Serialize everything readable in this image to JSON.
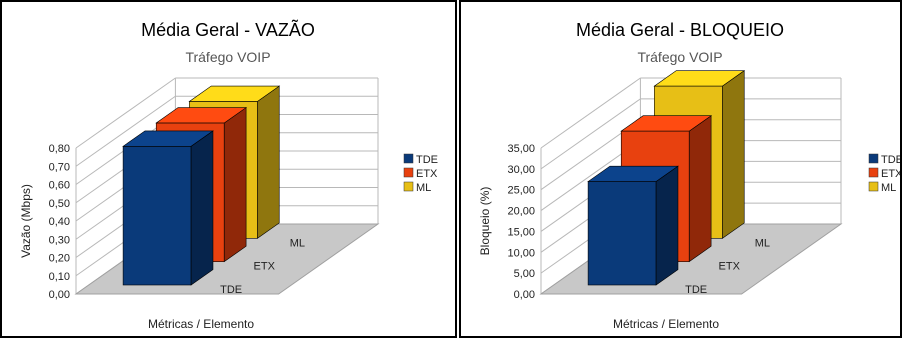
{
  "chart_data": [
    {
      "type": "bar",
      "title": "Média Geral - VAZÃO",
      "subtitle": "Tráfego VOIP",
      "xlabel": "Métricas / Elemento",
      "ylabel": "Vazão (Mbps)",
      "ylim": [
        0,
        0.8
      ],
      "yticks": [
        "0,00",
        "0,10",
        "0,20",
        "0,30",
        "0,40",
        "0,50",
        "0,60",
        "0,70",
        "0,80"
      ],
      "categories": [
        "TDE",
        "ETX",
        "ML"
      ],
      "values": [
        0.76,
        0.76,
        0.75
      ],
      "legend": [
        "TDE",
        "ETX",
        "ML"
      ],
      "colors": [
        "#0a3a7a",
        "#e8410f",
        "#e7bf16"
      ],
      "legend_position": "right",
      "grid": true,
      "three_d": true
    },
    {
      "type": "bar",
      "title": "Média Geral - BLOQUEIO",
      "subtitle": "Tráfego VOIP",
      "xlabel": "Métricas / Elemento",
      "ylabel": "Bloqueio (%)",
      "ylim": [
        0,
        35
      ],
      "yticks": [
        "0,00",
        "5,00",
        "10,00",
        "15,00",
        "20,00",
        "25,00",
        "30,00",
        "35,00"
      ],
      "categories": [
        "TDE",
        "ETX",
        "ML"
      ],
      "values": [
        24.8,
        31.3,
        36.5
      ],
      "legend": [
        "TDE",
        "ETX",
        "ML"
      ],
      "colors": [
        "#0a3a7a",
        "#e8410f",
        "#e7bf16"
      ],
      "legend_position": "right",
      "grid": true,
      "three_d": true
    }
  ]
}
